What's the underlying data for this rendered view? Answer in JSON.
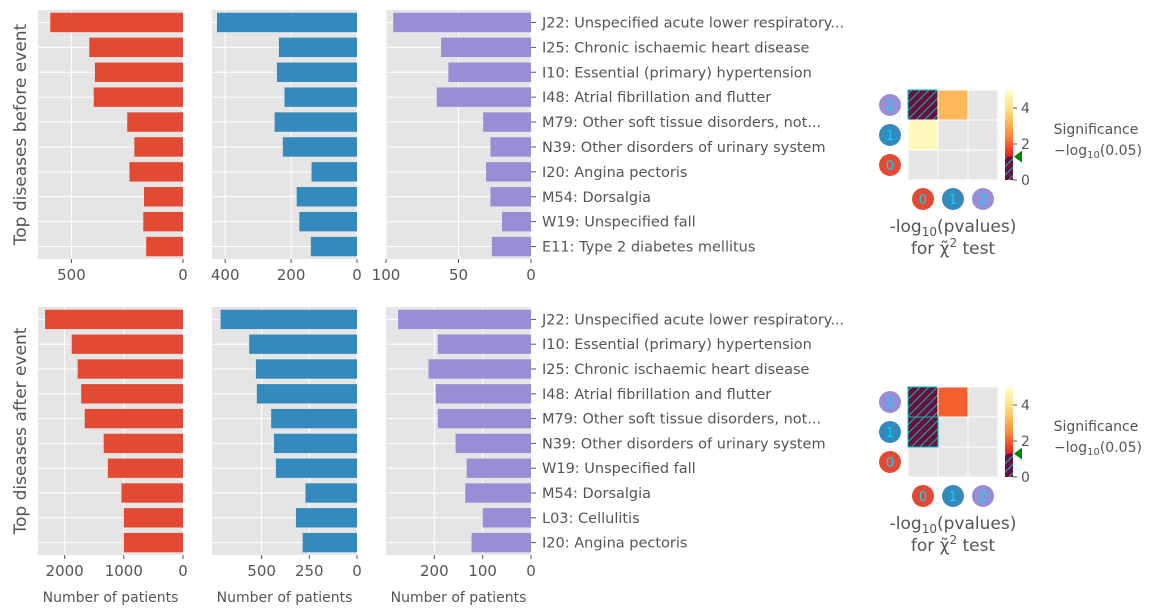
{
  "colors": {
    "cluster0": "#E24A33",
    "cluster1": "#348ABD",
    "cluster2": "#988ED5",
    "panel_bg": "#E5E5E5",
    "grid": "#FFFFFF",
    "text": "#555555",
    "marker": "#008000",
    "hatch_edge": "#00BFBF",
    "hatch_fill": "#6B0F3B"
  },
  "chart_data": [
    {
      "type": "bar",
      "orientation": "horizontal",
      "row_title": "Top diseases before event",
      "categories": [
        "J22: Unspecified acute lower respiratory...",
        "I25: Chronic ischaemic heart disease",
        "I10: Essential (primary) hypertension",
        "I48: Atrial fibrillation and flutter",
        "M79: Other soft tissue disorders, not...",
        "N39: Other disorders of urinary system",
        "I20: Angina pectoris",
        "M54: Dorsalgia",
        "W19: Unspecified fall",
        "E11: Type 2 diabetes mellitus"
      ],
      "series": [
        {
          "cluster": "0",
          "values": [
            595,
            420,
            395,
            400,
            250,
            218,
            240,
            175,
            178,
            165
          ],
          "xlim": [
            650,
            0
          ],
          "ticks": [
            500,
            0
          ]
        },
        {
          "cluster": "1",
          "values": [
            425,
            237,
            243,
            220,
            250,
            225,
            138,
            183,
            175,
            140
          ],
          "xlim": [
            440,
            0
          ],
          "ticks": [
            400,
            200,
            0
          ]
        },
        {
          "cluster": "2",
          "values": [
            95,
            62,
            57,
            65,
            33,
            28,
            31,
            28,
            20,
            27
          ],
          "xlim": [
            100,
            0
          ],
          "ticks": [
            100,
            50,
            0
          ]
        }
      ],
      "xlabels": [
        "",
        "",
        ""
      ]
    },
    {
      "type": "bar",
      "orientation": "horizontal",
      "row_title": "Top diseases after event",
      "categories": [
        "J22: Unspecified acute lower respiratory...",
        "I10: Essential (primary) hypertension",
        "I25: Chronic ischaemic heart disease",
        "I48: Atrial fibrillation and flutter",
        "M79: Other soft tissue disorders, not...",
        "N39: Other disorders of urinary system",
        "W19: Unspecified fall",
        "M54: Dorsalgia",
        "L03: Cellulitis",
        "I20: Angina pectoris"
      ],
      "series": [
        {
          "cluster": "0",
          "values": [
            2330,
            1880,
            1780,
            1720,
            1660,
            1340,
            1270,
            1040,
            1000,
            1000
          ],
          "xlim": [
            2450,
            0
          ],
          "ticks": [
            2000,
            1000,
            0
          ]
        },
        {
          "cluster": "1",
          "values": [
            715,
            565,
            530,
            525,
            450,
            435,
            425,
            270,
            320,
            285
          ],
          "xlim": [
            760,
            0
          ],
          "ticks": [
            500,
            250,
            0
          ]
        },
        {
          "cluster": "2",
          "values": [
            275,
            193,
            212,
            197,
            193,
            156,
            133,
            136,
            100,
            123
          ],
          "xlim": [
            300,
            0
          ],
          "ticks": [
            200,
            100,
            0
          ]
        }
      ],
      "xlabels": [
        "Number of patients",
        "Number of patients",
        "Number of patients"
      ]
    },
    {
      "type": "heatmap",
      "title": "-log10(pvalues) for χ̃² test",
      "x": [
        "0",
        "1",
        "2"
      ],
      "y": [
        "0",
        "1",
        "2"
      ],
      "cells": [
        {
          "row": "2",
          "col": "0",
          "value": null,
          "hatched": true
        },
        {
          "row": "2",
          "col": "1",
          "value": 3.2
        },
        {
          "row": "1",
          "col": "0",
          "value": 4.8
        }
      ],
      "colorbar": {
        "range": [
          0,
          5
        ],
        "ticks": [
          0,
          2,
          4
        ],
        "threshold": 1.3,
        "label": "Significance",
        "sublabel": "−log10(0.05)"
      }
    },
    {
      "type": "heatmap",
      "title": "-log10(pvalues) for χ̃² test",
      "x": [
        "0",
        "1",
        "2"
      ],
      "y": [
        "0",
        "1",
        "2"
      ],
      "cells": [
        {
          "row": "2",
          "col": "0",
          "value": null,
          "hatched": true
        },
        {
          "row": "2",
          "col": "1",
          "value": 2.0
        },
        {
          "row": "1",
          "col": "0",
          "value": null,
          "hatched": true
        }
      ],
      "colorbar": {
        "range": [
          0,
          5
        ],
        "ticks": [
          0,
          2,
          4
        ],
        "threshold": 1.3,
        "label": "Significance",
        "sublabel": "−log10(0.05)"
      }
    }
  ]
}
